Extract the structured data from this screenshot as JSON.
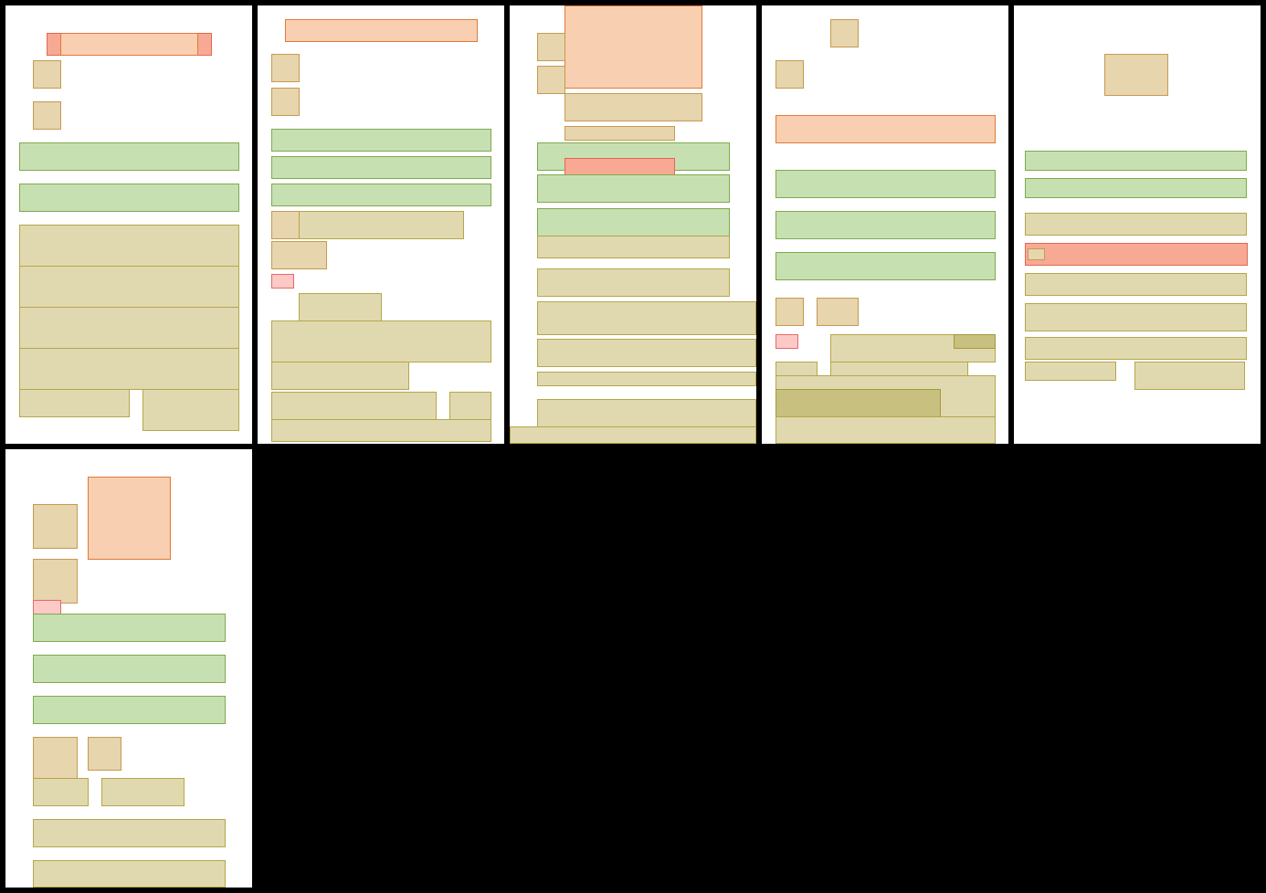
{
  "colors": {
    "background": "#000000",
    "panel": "#ffffff",
    "orange": {
      "fill": "#f8cfb0",
      "stroke": "#e07a3c"
    },
    "salmon": {
      "fill": "#f8a994",
      "stroke": "#e06a50"
    },
    "tan": {
      "fill": "#e6d5ad",
      "stroke": "#c69a52"
    },
    "green": {
      "fill": "#c7e0b2",
      "stroke": "#7eaa4c"
    },
    "khaki": {
      "fill": "#e0d9b0",
      "stroke": "#b5a64a"
    },
    "olive": {
      "fill": "#c8c07e",
      "stroke": "#a39a3d"
    },
    "pink": {
      "fill": "#fcc9c6",
      "stroke": "#e56a6a"
    }
  },
  "panels": [
    {
      "name": "page-1",
      "box_categories": [
        "salmon",
        "orange",
        "tan",
        "tan",
        "green",
        "green",
        "khaki",
        "khaki",
        "khaki",
        "khaki",
        "khaki",
        "khaki"
      ]
    },
    {
      "name": "page-2",
      "box_categories": [
        "orange",
        "tan",
        "tan",
        "green",
        "green",
        "green",
        "tan",
        "khaki",
        "tan",
        "pink",
        "khaki",
        "khaki",
        "khaki",
        "khaki",
        "khaki",
        "khaki"
      ]
    },
    {
      "name": "page-3",
      "box_categories": [
        "orange",
        "tan",
        "tan",
        "tan",
        "tan",
        "green",
        "salmon",
        "green",
        "green",
        "khaki",
        "khaki",
        "khaki",
        "khaki",
        "khaki",
        "khaki",
        "khaki"
      ]
    },
    {
      "name": "page-4",
      "box_categories": [
        "tan",
        "tan",
        "orange",
        "green",
        "green",
        "green",
        "tan",
        "tan",
        "pink",
        "khaki",
        "olive",
        "khaki",
        "khaki",
        "khaki",
        "olive",
        "khaki"
      ]
    },
    {
      "name": "page-5",
      "box_categories": [
        "tan",
        "green",
        "green",
        "khaki",
        "salmon",
        "tan",
        "khaki",
        "khaki",
        "khaki",
        "khaki",
        "khaki"
      ]
    },
    {
      "name": "page-6",
      "box_categories": [
        "orange",
        "tan",
        "tan",
        "pink",
        "green",
        "green",
        "green",
        "tan",
        "tan",
        "khaki",
        "khaki",
        "khaki",
        "khaki"
      ]
    }
  ]
}
